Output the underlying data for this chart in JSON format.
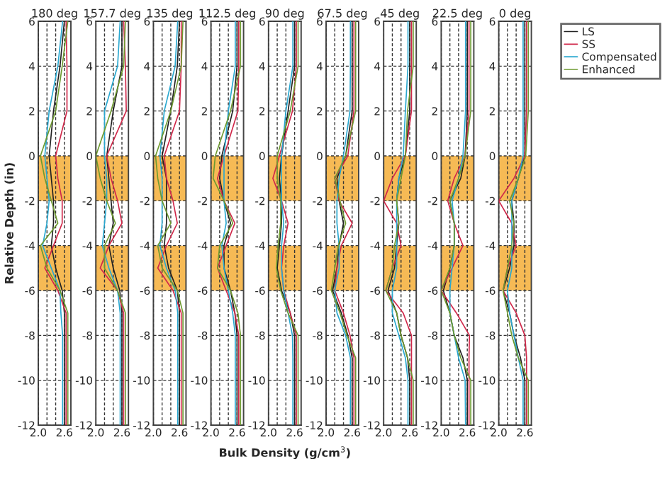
{
  "chart_data": [
    {
      "type": "line",
      "title": "180 deg",
      "ylabel": "Relative Depth (in)",
      "orientation": "horizontal",
      "x": [
        6,
        4,
        2,
        0,
        -1,
        -2,
        -3,
        -4,
        -5,
        -6,
        -7,
        -8,
        -9,
        -10,
        -12
      ],
      "xlim": [
        2.0,
        2.75
      ],
      "xticks": [
        {
          "value": 2.0,
          "label": "2.0"
        },
        {
          "value": 2.2,
          "label": null
        },
        {
          "value": 2.4,
          "label": null
        },
        {
          "value": 2.6,
          "label": "2.6"
        }
      ],
      "ylim": [
        -12,
        6
      ],
      "yticks": [
        -12,
        -10,
        -8,
        -6,
        -4,
        -2,
        0,
        2,
        4,
        6
      ],
      "grid": true,
      "bands": [
        {
          "axis": "y",
          "from": -2,
          "to": 0,
          "color": "#f5b342"
        },
        {
          "axis": "y",
          "from": -6,
          "to": -4,
          "color": "#f5b342"
        }
      ],
      "series": [
        {
          "color": "#222222",
          "values": [
            2.6,
            2.5,
            2.35,
            2.25,
            2.3,
            2.35,
            2.35,
            2.3,
            2.4,
            2.55,
            2.6,
            2.6,
            2.6,
            2.6,
            2.6
          ]
        },
        {
          "color": "#d0284a",
          "values": [
            2.64,
            2.66,
            2.66,
            2.4,
            2.45,
            2.55,
            2.55,
            2.35,
            2.15,
            2.45,
            2.64,
            2.64,
            2.64,
            2.64,
            2.64
          ]
        },
        {
          "color": "#2aa8d0",
          "values": [
            2.56,
            2.45,
            2.25,
            2.15,
            2.2,
            2.25,
            2.2,
            2.1,
            2.3,
            2.5,
            2.52,
            2.56,
            2.56,
            2.56,
            2.56
          ]
        },
        {
          "color": "#6e9a30",
          "values": [
            2.68,
            2.55,
            2.4,
            2.05,
            2.15,
            2.3,
            2.45,
            2.05,
            2.2,
            2.5,
            2.68,
            2.68,
            2.68,
            2.68,
            2.68
          ]
        }
      ]
    },
    {
      "type": "line",
      "title": "157.7 deg",
      "orientation": "horizontal",
      "x": [
        6,
        4,
        2,
        0,
        -1,
        -2,
        -3,
        -4,
        -5,
        -6,
        -7,
        -8,
        -9,
        -10,
        -12
      ],
      "xlim": [
        2.0,
        2.75
      ],
      "xticks": [
        {
          "value": 2.0,
          "label": "2.0"
        },
        {
          "value": 2.2,
          "label": null
        },
        {
          "value": 2.4,
          "label": null
        },
        {
          "value": 2.6,
          "label": "2.6"
        }
      ],
      "ylim": [
        -12,
        6
      ],
      "yticks": [
        -12,
        -10,
        -8,
        -6,
        -4,
        -2,
        0,
        2,
        4,
        6
      ],
      "grid": true,
      "bands": [
        {
          "axis": "y",
          "from": -2,
          "to": 0,
          "color": "#f5b342"
        },
        {
          "axis": "y",
          "from": -6,
          "to": -4,
          "color": "#f5b342"
        }
      ],
      "series": [
        {
          "color": "#222222",
          "values": [
            2.6,
            2.6,
            2.4,
            2.25,
            2.3,
            2.35,
            2.4,
            2.3,
            2.4,
            2.55,
            2.6,
            2.6,
            2.6,
            2.6,
            2.6
          ]
        },
        {
          "color": "#d0284a",
          "values": [
            2.64,
            2.68,
            2.7,
            2.25,
            2.35,
            2.5,
            2.6,
            2.3,
            2.1,
            2.5,
            2.64,
            2.64,
            2.64,
            2.64,
            2.64
          ]
        },
        {
          "color": "#2aa8d0",
          "values": [
            2.56,
            2.5,
            2.2,
            2.2,
            2.25,
            2.25,
            2.2,
            2.15,
            2.3,
            2.5,
            2.56,
            2.56,
            2.56,
            2.56,
            2.56
          ]
        },
        {
          "color": "#6e9a30",
          "values": [
            2.68,
            2.64,
            2.35,
            2.0,
            2.1,
            2.25,
            2.45,
            2.2,
            2.2,
            2.5,
            2.68,
            2.68,
            2.68,
            2.68,
            2.68
          ]
        }
      ]
    },
    {
      "type": "line",
      "title": "135 deg",
      "orientation": "horizontal",
      "x": [
        6,
        4,
        2,
        0,
        -1,
        -2,
        -3,
        -4,
        -5,
        -6,
        -7,
        -8,
        -9,
        -10,
        -12
      ],
      "xlim": [
        2.0,
        2.75
      ],
      "xticks": [
        {
          "value": 2.0,
          "label": "2.0"
        },
        {
          "value": 2.2,
          "label": null
        },
        {
          "value": 2.4,
          "label": null
        },
        {
          "value": 2.6,
          "label": "2.6"
        }
      ],
      "ylim": [
        -12,
        6
      ],
      "yticks": [
        -12,
        -10,
        -8,
        -6,
        -4,
        -2,
        0,
        2,
        4,
        6
      ],
      "grid": true,
      "bands": [
        {
          "axis": "y",
          "from": -2,
          "to": 0,
          "color": "#f5b342"
        },
        {
          "axis": "y",
          "from": -6,
          "to": -4,
          "color": "#f5b342"
        }
      ],
      "series": [
        {
          "color": "#222222",
          "values": [
            2.6,
            2.55,
            2.4,
            2.2,
            2.3,
            2.3,
            2.3,
            2.25,
            2.35,
            2.55,
            2.6,
            2.6,
            2.6,
            2.6,
            2.6
          ]
        },
        {
          "color": "#d0284a",
          "values": [
            2.64,
            2.64,
            2.6,
            2.25,
            2.3,
            2.45,
            2.55,
            2.3,
            2.1,
            2.45,
            2.64,
            2.64,
            2.64,
            2.64,
            2.64
          ]
        },
        {
          "color": "#2aa8d0",
          "values": [
            2.56,
            2.5,
            2.25,
            2.15,
            2.2,
            2.2,
            2.2,
            2.15,
            2.3,
            2.5,
            2.56,
            2.56,
            2.56,
            2.56,
            2.56
          ]
        },
        {
          "color": "#6e9a30",
          "values": [
            2.68,
            2.64,
            2.4,
            2.05,
            2.1,
            2.2,
            2.4,
            2.1,
            2.2,
            2.55,
            2.68,
            2.68,
            2.68,
            2.68,
            2.68
          ]
        }
      ]
    },
    {
      "type": "line",
      "title": "112.5 deg",
      "orientation": "horizontal",
      "x": [
        6,
        4,
        2,
        0,
        -1,
        -2,
        -3,
        -4,
        -5,
        -6,
        -7,
        -8,
        -9,
        -10,
        -12
      ],
      "xlim": [
        2.0,
        2.75
      ],
      "xticks": [
        {
          "value": 2.0,
          "label": "2.0"
        },
        {
          "value": 2.2,
          "label": null
        },
        {
          "value": 2.4,
          "label": null
        },
        {
          "value": 2.6,
          "label": "2.6"
        }
      ],
      "ylim": [
        -12,
        6
      ],
      "yticks": [
        -12,
        -10,
        -8,
        -6,
        -4,
        -2,
        0,
        2,
        4,
        6
      ],
      "grid": true,
      "bands": [
        {
          "axis": "y",
          "from": -2,
          "to": 0,
          "color": "#f5b342"
        },
        {
          "axis": "y",
          "from": -6,
          "to": -4,
          "color": "#f5b342"
        }
      ],
      "series": [
        {
          "color": "#222222",
          "values": [
            2.6,
            2.6,
            2.5,
            2.25,
            2.2,
            2.3,
            2.45,
            2.3,
            2.3,
            2.45,
            2.55,
            2.6,
            2.6,
            2.6,
            2.6
          ]
        },
        {
          "color": "#d0284a",
          "values": [
            2.64,
            2.64,
            2.62,
            2.3,
            2.15,
            2.3,
            2.55,
            2.35,
            2.15,
            2.35,
            2.55,
            2.64,
            2.64,
            2.64,
            2.64
          ]
        },
        {
          "color": "#2aa8d0",
          "values": [
            2.56,
            2.56,
            2.4,
            2.3,
            2.3,
            2.3,
            2.35,
            2.25,
            2.3,
            2.4,
            2.5,
            2.56,
            2.56,
            2.56,
            2.56
          ]
        },
        {
          "color": "#6e9a30",
          "values": [
            2.68,
            2.68,
            2.45,
            2.1,
            2.05,
            2.3,
            2.5,
            2.2,
            2.15,
            2.45,
            2.62,
            2.68,
            2.68,
            2.68,
            2.68
          ]
        }
      ]
    },
    {
      "type": "line",
      "title": "90 deg",
      "xlabel": "Bulk Density (g/cm$^{3}$)",
      "orientation": "horizontal",
      "x": [
        6,
        4,
        2,
        0,
        -1,
        -2,
        -3,
        -4,
        -5,
        -6,
        -7,
        -8,
        -9,
        -10,
        -12
      ],
      "xlim": [
        2.0,
        2.75
      ],
      "xticks": [
        {
          "value": 2.0,
          "label": "2.0"
        },
        {
          "value": 2.2,
          "label": null
        },
        {
          "value": 2.4,
          "label": null
        },
        {
          "value": 2.6,
          "label": "2.6"
        }
      ],
      "ylim": [
        -12,
        6
      ],
      "yticks": [
        -12,
        -10,
        -8,
        -6,
        -4,
        -2,
        0,
        2,
        4,
        6
      ],
      "grid": true,
      "bands": [
        {
          "axis": "y",
          "from": -2,
          "to": 0,
          "color": "#f5b342"
        },
        {
          "axis": "y",
          "from": -6,
          "to": -4,
          "color": "#f5b342"
        }
      ],
      "series": [
        {
          "color": "#222222",
          "values": [
            2.6,
            2.6,
            2.45,
            2.3,
            2.25,
            2.3,
            2.3,
            2.25,
            2.2,
            2.3,
            2.5,
            2.6,
            2.6,
            2.6,
            2.6
          ]
        },
        {
          "color": "#d0284a",
          "values": [
            2.64,
            2.64,
            2.55,
            2.25,
            2.1,
            2.3,
            2.45,
            2.35,
            2.3,
            2.35,
            2.5,
            2.64,
            2.64,
            2.64,
            2.64
          ]
        },
        {
          "color": "#2aa8d0",
          "values": [
            2.56,
            2.56,
            2.4,
            2.3,
            2.3,
            2.3,
            2.35,
            2.3,
            2.3,
            2.35,
            2.45,
            2.55,
            2.56,
            2.56,
            2.56
          ]
        },
        {
          "color": "#6e9a30",
          "values": [
            2.68,
            2.68,
            2.5,
            2.2,
            2.2,
            2.28,
            2.28,
            2.22,
            2.18,
            2.28,
            2.45,
            2.68,
            2.68,
            2.68,
            2.68
          ]
        }
      ]
    },
    {
      "type": "line",
      "title": "67.5 deg",
      "orientation": "horizontal",
      "x": [
        6,
        4,
        2,
        0,
        -1,
        -2,
        -3,
        -4,
        -5,
        -6,
        -7,
        -8,
        -9,
        -10,
        -12
      ],
      "xlim": [
        2.0,
        2.75
      ],
      "xticks": [
        {
          "value": 2.0,
          "label": "2.0"
        },
        {
          "value": 2.2,
          "label": null
        },
        {
          "value": 2.4,
          "label": null
        },
        {
          "value": 2.6,
          "label": "2.6"
        }
      ],
      "ylim": [
        -12,
        6
      ],
      "yticks": [
        -12,
        -10,
        -8,
        -6,
        -4,
        -2,
        0,
        2,
        4,
        6
      ],
      "grid": true,
      "bands": [
        {
          "axis": "y",
          "from": -2,
          "to": 0,
          "color": "#f5b342"
        },
        {
          "axis": "y",
          "from": -6,
          "to": -4,
          "color": "#f5b342"
        }
      ],
      "series": [
        {
          "color": "#222222",
          "values": [
            2.6,
            2.6,
            2.6,
            2.45,
            2.25,
            2.3,
            2.4,
            2.3,
            2.25,
            2.15,
            2.35,
            2.5,
            2.6,
            2.6,
            2.6
          ]
        },
        {
          "color": "#d0284a",
          "values": [
            2.64,
            2.64,
            2.64,
            2.5,
            2.2,
            2.3,
            2.6,
            2.35,
            2.25,
            2.2,
            2.4,
            2.55,
            2.64,
            2.64,
            2.64
          ]
        },
        {
          "color": "#2aa8d0",
          "values": [
            2.56,
            2.56,
            2.55,
            2.4,
            2.3,
            2.25,
            2.25,
            2.3,
            2.3,
            2.2,
            2.25,
            2.45,
            2.56,
            2.56,
            2.56
          ]
        },
        {
          "color": "#6e9a30",
          "values": [
            2.68,
            2.68,
            2.68,
            2.45,
            2.2,
            2.32,
            2.45,
            2.28,
            2.2,
            2.12,
            2.32,
            2.48,
            2.68,
            2.68,
            2.68
          ]
        }
      ]
    },
    {
      "type": "line",
      "title": "45 deg",
      "orientation": "horizontal",
      "x": [
        6,
        4,
        2,
        0,
        -1,
        -2,
        -3,
        -4,
        -5,
        -6,
        -7,
        -8,
        -9,
        -10,
        -12
      ],
      "xlim": [
        2.0,
        2.75
      ],
      "xticks": [
        {
          "value": 2.0,
          "label": "2.0"
        },
        {
          "value": 2.2,
          "label": null
        },
        {
          "value": 2.4,
          "label": null
        },
        {
          "value": 2.6,
          "label": "2.6"
        }
      ],
      "ylim": [
        -12,
        6
      ],
      "yticks": [
        -12,
        -10,
        -8,
        -6,
        -4,
        -2,
        0,
        2,
        4,
        6
      ],
      "grid": true,
      "bands": [
        {
          "axis": "y",
          "from": -2,
          "to": 0,
          "color": "#f5b342"
        },
        {
          "axis": "y",
          "from": -6,
          "to": -4,
          "color": "#f5b342"
        }
      ],
      "series": [
        {
          "color": "#222222",
          "values": [
            2.6,
            2.6,
            2.6,
            2.5,
            2.35,
            2.3,
            2.35,
            2.3,
            2.25,
            2.1,
            2.3,
            2.4,
            2.55,
            2.6,
            2.6
          ]
        },
        {
          "color": "#d0284a",
          "values": [
            2.64,
            2.64,
            2.64,
            2.5,
            2.2,
            2.0,
            2.3,
            2.4,
            2.2,
            2.05,
            2.45,
            2.64,
            2.64,
            2.64,
            2.64
          ]
        },
        {
          "color": "#2aa8d0",
          "values": [
            2.56,
            2.56,
            2.5,
            2.45,
            2.35,
            2.3,
            2.3,
            2.3,
            2.3,
            2.2,
            2.2,
            2.35,
            2.5,
            2.56,
            2.56
          ]
        },
        {
          "color": "#6e9a30",
          "values": [
            2.68,
            2.68,
            2.55,
            2.5,
            2.4,
            2.3,
            2.35,
            2.25,
            2.2,
            2.05,
            2.3,
            2.4,
            2.55,
            2.68,
            2.68
          ]
        }
      ]
    },
    {
      "type": "line",
      "title": "22.5 deg",
      "orientation": "horizontal",
      "x": [
        6,
        4,
        2,
        0,
        -1,
        -2,
        -3,
        -4,
        -5,
        -6,
        -7,
        -8,
        -9,
        -10,
        -12
      ],
      "xlim": [
        2.0,
        2.75
      ],
      "xticks": [
        {
          "value": 2.0,
          "label": "2.0"
        },
        {
          "value": 2.2,
          "label": null
        },
        {
          "value": 2.4,
          "label": null
        },
        {
          "value": 2.6,
          "label": "2.6"
        }
      ],
      "ylim": [
        -12,
        6
      ],
      "yticks": [
        -12,
        -10,
        -8,
        -6,
        -4,
        -2,
        0,
        2,
        4,
        6
      ],
      "grid": true,
      "bands": [
        {
          "axis": "y",
          "from": -2,
          "to": 0,
          "color": "#f5b342"
        },
        {
          "axis": "y",
          "from": -6,
          "to": -4,
          "color": "#f5b342"
        }
      ],
      "series": [
        {
          "color": "#222222",
          "values": [
            2.6,
            2.6,
            2.6,
            2.55,
            2.45,
            2.2,
            2.3,
            2.3,
            2.2,
            2.05,
            2.2,
            2.3,
            2.5,
            2.6,
            2.6
          ]
        },
        {
          "color": "#d0284a",
          "values": [
            2.64,
            2.64,
            2.64,
            2.55,
            2.3,
            2.15,
            2.3,
            2.5,
            2.25,
            2.0,
            2.35,
            2.65,
            2.64,
            2.64,
            2.64
          ]
        },
        {
          "color": "#2aa8d0",
          "values": [
            2.56,
            2.56,
            2.56,
            2.5,
            2.4,
            2.25,
            2.3,
            2.3,
            2.25,
            2.2,
            2.2,
            2.3,
            2.4,
            2.55,
            2.56
          ]
        },
        {
          "color": "#6e9a30",
          "values": [
            2.68,
            2.68,
            2.68,
            2.55,
            2.4,
            2.2,
            2.3,
            2.3,
            2.2,
            2.0,
            2.2,
            2.3,
            2.45,
            2.68,
            2.68
          ]
        }
      ]
    },
    {
      "type": "line",
      "title": "0 deg",
      "orientation": "horizontal",
      "legend": "right",
      "x": [
        6,
        4,
        2,
        0,
        -1,
        -2,
        -3,
        -4,
        -5,
        -6,
        -7,
        -8,
        -9,
        -10,
        -12
      ],
      "xlim": [
        2.0,
        2.75
      ],
      "xticks": [
        {
          "value": 2.0,
          "label": "2.0"
        },
        {
          "value": 2.2,
          "label": null
        },
        {
          "value": 2.4,
          "label": null
        },
        {
          "value": 2.6,
          "label": "2.6"
        }
      ],
      "ylim": [
        -12,
        6
      ],
      "yticks": [
        -12,
        -10,
        -8,
        -6,
        -4,
        -2,
        0,
        2,
        4,
        6
      ],
      "grid": true,
      "bands": [
        {
          "axis": "y",
          "from": -2,
          "to": 0,
          "color": "#f5b342"
        },
        {
          "axis": "y",
          "from": -6,
          "to": -4,
          "color": "#f5b342"
        }
      ],
      "series": [
        {
          "name": "LS",
          "color": "#222222",
          "values": [
            2.6,
            2.6,
            2.6,
            2.6,
            2.45,
            2.3,
            2.35,
            2.35,
            2.25,
            2.1,
            2.25,
            2.35,
            2.5,
            2.6,
            2.6
          ]
        },
        {
          "name": "SS",
          "color": "#d0284a",
          "values": [
            2.64,
            2.64,
            2.64,
            2.6,
            2.35,
            2.0,
            2.3,
            2.4,
            2.2,
            2.1,
            2.4,
            2.6,
            2.64,
            2.64,
            2.64
          ]
        },
        {
          "name": "Compensated",
          "color": "#2aa8d0",
          "values": [
            2.56,
            2.56,
            2.56,
            2.56,
            2.45,
            2.3,
            2.3,
            2.3,
            2.3,
            2.2,
            2.25,
            2.35,
            2.45,
            2.56,
            2.56
          ]
        },
        {
          "name": "Enhanced",
          "color": "#6e9a30",
          "values": [
            2.68,
            2.68,
            2.68,
            2.62,
            2.45,
            2.25,
            2.35,
            2.3,
            2.2,
            2.1,
            2.2,
            2.3,
            2.45,
            2.68,
            2.68
          ]
        }
      ]
    }
  ]
}
